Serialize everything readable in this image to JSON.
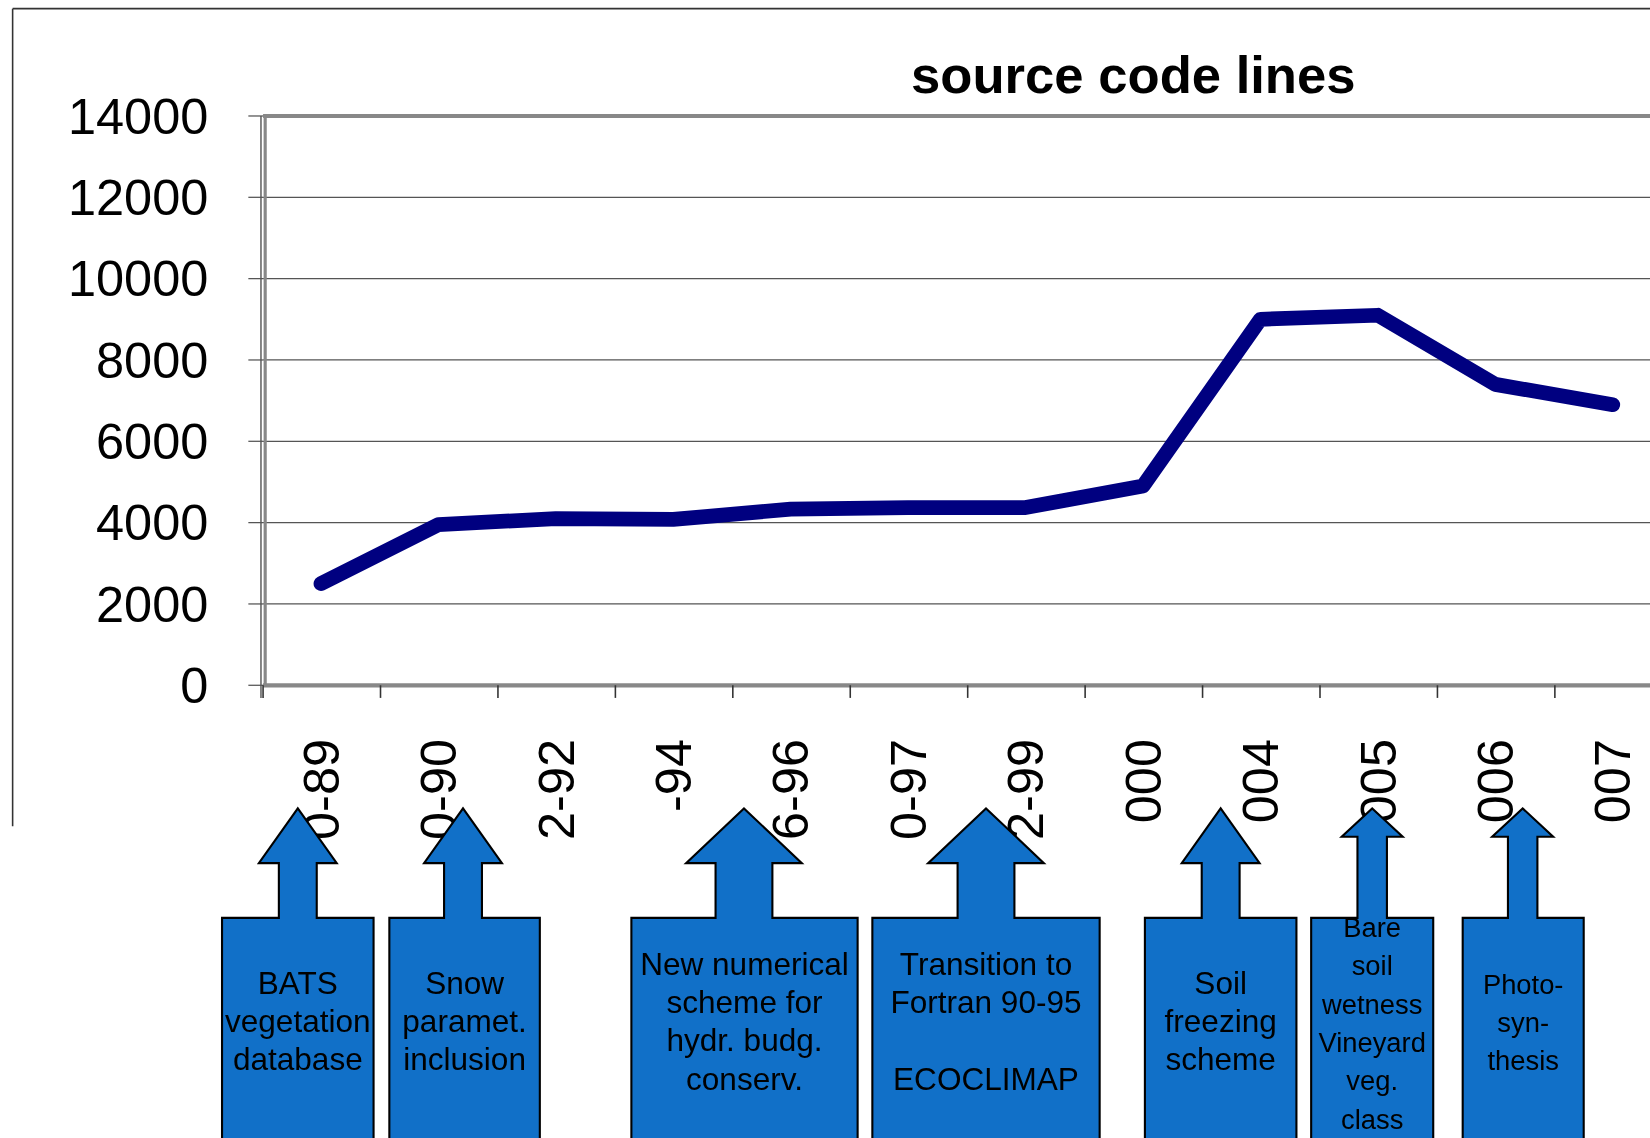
{
  "chart_data": {
    "type": "line",
    "title": "source code lines",
    "categories": [
      "0-89",
      "0-90",
      "2-92",
      "-94",
      "6-96",
      "0-97",
      "2-99",
      "000",
      "004",
      "005",
      "006",
      "007"
    ],
    "series": [
      {
        "color": "#000080",
        "values": [
          2500,
          3950,
          4100,
          4080,
          4330,
          4370,
          4370,
          4900,
          9000,
          9100,
          7400,
          6900
        ]
      }
    ],
    "ylim": [
      0,
      14000
    ],
    "yticks": [
      0,
      2000,
      4000,
      6000,
      8000,
      10000,
      12000,
      14000
    ],
    "grid": "y",
    "marker": "none",
    "line_style": "solid",
    "annotations": [
      "BATS\nvegetation\ndatabase",
      "Snow\nparamet.\ninclusion",
      "New numerical\nscheme for\nhydr. budg.\nconserv.",
      "Transition to\nFortran 90-95\n\nECOCLIMAP",
      "Soil\nfreezing\nscheme",
      "Bare\nsoil\nwetness\nVineyard\nveg.\nclass",
      "Photo-\nsyn-\nthesis"
    ]
  }
}
